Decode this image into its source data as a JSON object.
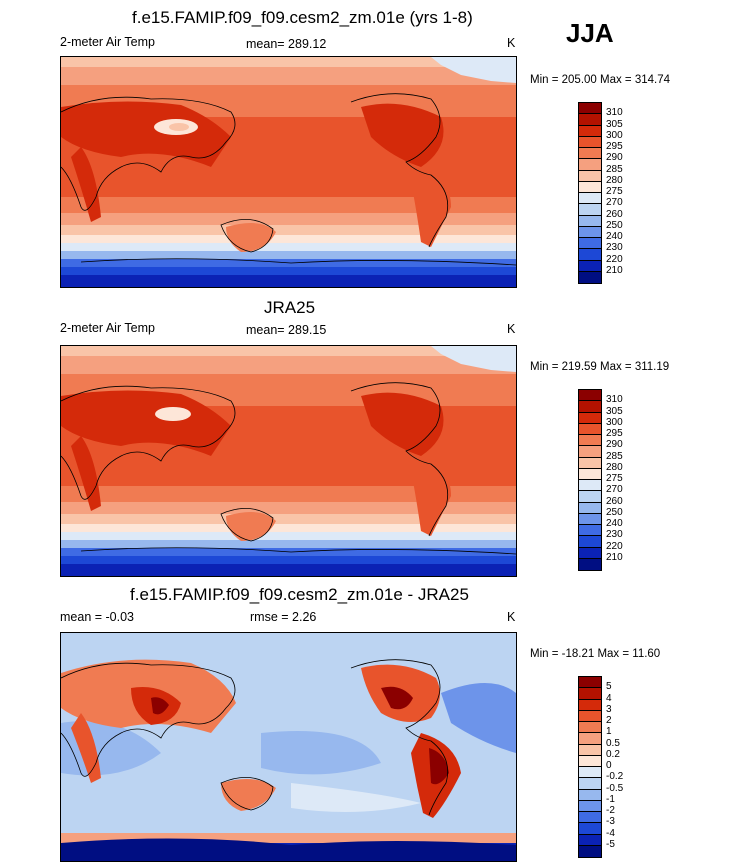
{
  "season": "JJA",
  "panels": [
    {
      "title": "f.e15.FAMIP.f09_f09.cesm2_zm.01e (yrs 1-8)",
      "left_label": "2-meter Air Temp",
      "center_label": "mean= 289.12",
      "units": "K",
      "minmax": "Min = 205.00 Max = 314.74"
    },
    {
      "title": "JRA25",
      "left_label": "2-meter Air Temp",
      "center_label": "mean= 289.15",
      "units": "K",
      "minmax": "Min = 219.59 Max = 311.19"
    },
    {
      "title": "f.e15.FAMIP.f09_f09.cesm2_zm.01e - JRA25",
      "left_label": "mean =  -0.03",
      "center_label": "rmse =   2.26",
      "units": "K",
      "minmax": "Min = -18.21 Max =  11.60"
    }
  ],
  "temp_levels": [
    "310",
    "305",
    "300",
    "295",
    "290",
    "285",
    "280",
    "275",
    "270",
    "260",
    "250",
    "240",
    "230",
    "220",
    "210"
  ],
  "diff_levels": [
    "5",
    "4",
    "3",
    "2",
    "1",
    "0.5",
    "0.2",
    "0",
    "-0.2",
    "-0.5",
    "-1",
    "-2",
    "-3",
    "-4",
    "-5"
  ],
  "temp_colors": [
    "#8b0000",
    "#b31200",
    "#d42a0a",
    "#e8542c",
    "#f07b52",
    "#f5a07f",
    "#f9c4a8",
    "#fde6d8",
    "#dde9f7",
    "#bcd4f2",
    "#97b8ee",
    "#6d94ea",
    "#3f6be4",
    "#1d48d6",
    "#0b22b5",
    "#000e82"
  ],
  "diff_colors": [
    "#8b0000",
    "#b31200",
    "#d42a0a",
    "#e8542c",
    "#f07b52",
    "#f5a07f",
    "#f9c4a8",
    "#fde6d8",
    "#dde9f7",
    "#bcd4f2",
    "#97b8ee",
    "#6d94ea",
    "#3f6be4",
    "#1d48d6",
    "#0b22b5",
    "#000e82"
  ]
}
